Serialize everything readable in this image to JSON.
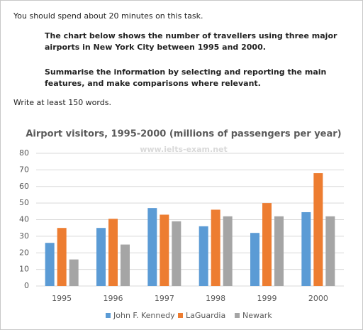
{
  "document": {
    "instruction": "You should spend about 20 minutes on this task.",
    "task": [
      "The chart below shows the number of travellers using three major airports in New York City between 1995 and 2000.",
      "Summarise the information by selecting and reporting the main features, and make comparisons where relevant."
    ],
    "word_count": "Write at least 150 words."
  },
  "chart_data": {
    "type": "bar",
    "title": "Airport visitors, 1995-2000 (millions of passengers per year)",
    "watermark": "www.ielts-exam.net",
    "categories": [
      "1995",
      "1996",
      "1997",
      "1998",
      "1999",
      "2000"
    ],
    "series": [
      {
        "name": "John F. Kennedy",
        "color": "#5b9bd5",
        "values": [
          26,
          35,
          47,
          36,
          32,
          44.5
        ]
      },
      {
        "name": "LaGuardia",
        "color": "#ed7d31",
        "values": [
          35,
          40.5,
          43,
          46,
          50,
          68
        ]
      },
      {
        "name": "Newark",
        "color": "#a5a5a5",
        "values": [
          16,
          25,
          39,
          42,
          42,
          42
        ]
      }
    ],
    "ylim": [
      0,
      80
    ],
    "yticks": [
      0,
      10,
      20,
      30,
      40,
      50,
      60,
      70,
      80
    ],
    "grid": true,
    "legend": "bottom"
  }
}
